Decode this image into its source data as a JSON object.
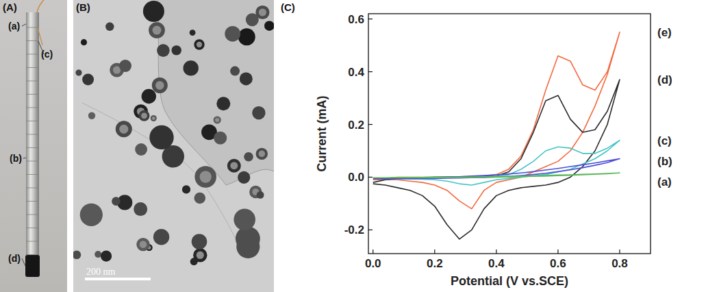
{
  "figure": {
    "panel_labels": [
      "(A)",
      "(B)",
      "(C)"
    ],
    "electrode_labels": [
      "(a)",
      "(b)",
      "(c)",
      "(d)"
    ],
    "scale_bar": "200 nm"
  },
  "chart_data": {
    "type": "line",
    "x_label": "Potential (V vs.SCE)",
    "y_label": "Current (mA)",
    "x": [
      0,
      0.04,
      0.08,
      0.12,
      0.16,
      0.2,
      0.24,
      0.28,
      0.32,
      0.36,
      0.4,
      0.44,
      0.48,
      0.52,
      0.56,
      0.6,
      0.64,
      0.68,
      0.72,
      0.76,
      0.8,
      0.76,
      0.72,
      0.68,
      0.64,
      0.6,
      0.56,
      0.52,
      0.48,
      0.44,
      0.4,
      0.36,
      0.32,
      0.28,
      0.24,
      0.2,
      0.16,
      0.12,
      0.08,
      0.04,
      0
    ],
    "xlim": [
      -0.015,
      0.9
    ],
    "xticks": [
      {
        "value": 0,
        "label": "0.0"
      },
      0.2,
      0.4,
      0.6,
      0.8
    ],
    "ylim": [
      -0.29,
      0.62
    ],
    "yticks": [
      -0.2,
      {
        "value": 0,
        "label": "0.0"
      },
      0.2,
      0.4,
      0.6
    ],
    "series": [
      {
        "name": "(e)",
        "color": "#f4683c",
        "values": [
          -0.01,
          -0.005,
          0,
          0,
          0,
          0,
          0.001,
          0.002,
          0.003,
          0.005,
          0.01,
          0.03,
          0.08,
          0.18,
          0.33,
          0.46,
          0.44,
          0.35,
          0.33,
          0.4,
          0.55,
          0.39,
          0.27,
          0.17,
          0.1,
          0.06,
          0.04,
          0.02,
          0,
          -0.01,
          -0.02,
          -0.05,
          -0.12,
          -0.09,
          -0.05,
          -0.03,
          -0.02,
          -0.015,
          -0.01,
          -0.01,
          -0.01
        ]
      },
      {
        "name": "(d)",
        "color": "#2a2a2a",
        "values": [
          -0.02,
          -0.01,
          -0.005,
          -0.003,
          -0.002,
          0,
          0,
          0.001,
          0.002,
          0.003,
          0.005,
          0.02,
          0.07,
          0.17,
          0.29,
          0.31,
          0.22,
          0.17,
          0.18,
          0.25,
          0.37,
          0.2,
          0.1,
          0.04,
          0,
          -0.02,
          -0.03,
          -0.035,
          -0.04,
          -0.05,
          -0.07,
          -0.12,
          -0.2,
          -0.235,
          -0.18,
          -0.11,
          -0.07,
          -0.05,
          -0.04,
          -0.03,
          -0.025
        ]
      },
      {
        "name": "(c)",
        "color": "#45c4c4",
        "values": [
          -0.005,
          -0.004,
          -0.003,
          -0.002,
          -0.001,
          0,
          0,
          0,
          0,
          0.002,
          0.004,
          0.01,
          0.03,
          0.06,
          0.1,
          0.115,
          0.11,
          0.09,
          0.09,
          0.11,
          0.14,
          0.1,
          0.07,
          0.05,
          0.03,
          0.02,
          0.01,
          0.005,
          0,
          -0.005,
          -0.01,
          -0.02,
          -0.03,
          -0.025,
          -0.015,
          -0.01,
          -0.008,
          -0.007,
          -0.006,
          -0.006,
          -0.005
        ]
      },
      {
        "name": "(b)",
        "color": "#4d4fd6",
        "values": [
          -0.005,
          -0.004,
          -0.003,
          -0.002,
          -0.001,
          0,
          0.001,
          0.002,
          0.004,
          0.006,
          0.009,
          0.012,
          0.016,
          0.021,
          0.027,
          0.033,
          0.04,
          0.047,
          0.054,
          0.062,
          0.07,
          0.055,
          0.045,
          0.036,
          0.028,
          0.021,
          0.015,
          0.01,
          0.006,
          0.003,
          0.001,
          -0.001,
          -0.002,
          -0.003,
          -0.004,
          -0.005,
          -0.005,
          -0.006,
          -0.006,
          -0.006,
          -0.006
        ]
      },
      {
        "name": "(a)",
        "color": "#5cb85c",
        "values": [
          -0.002,
          -0.002,
          -0.001,
          -0.001,
          -0.001,
          0,
          0,
          0,
          0.001,
          0.001,
          0.002,
          0.003,
          0.004,
          0.005,
          0.006,
          0.008,
          0.009,
          0.011,
          0.012,
          0.014,
          0.016,
          0.013,
          0.011,
          0.009,
          0.007,
          0.006,
          0.004,
          0.003,
          0.002,
          0.001,
          0,
          0,
          -0.001,
          -0.001,
          -0.001,
          -0.002,
          -0.002,
          -0.002,
          -0.002,
          -0.002,
          -0.002
        ]
      }
    ]
  }
}
